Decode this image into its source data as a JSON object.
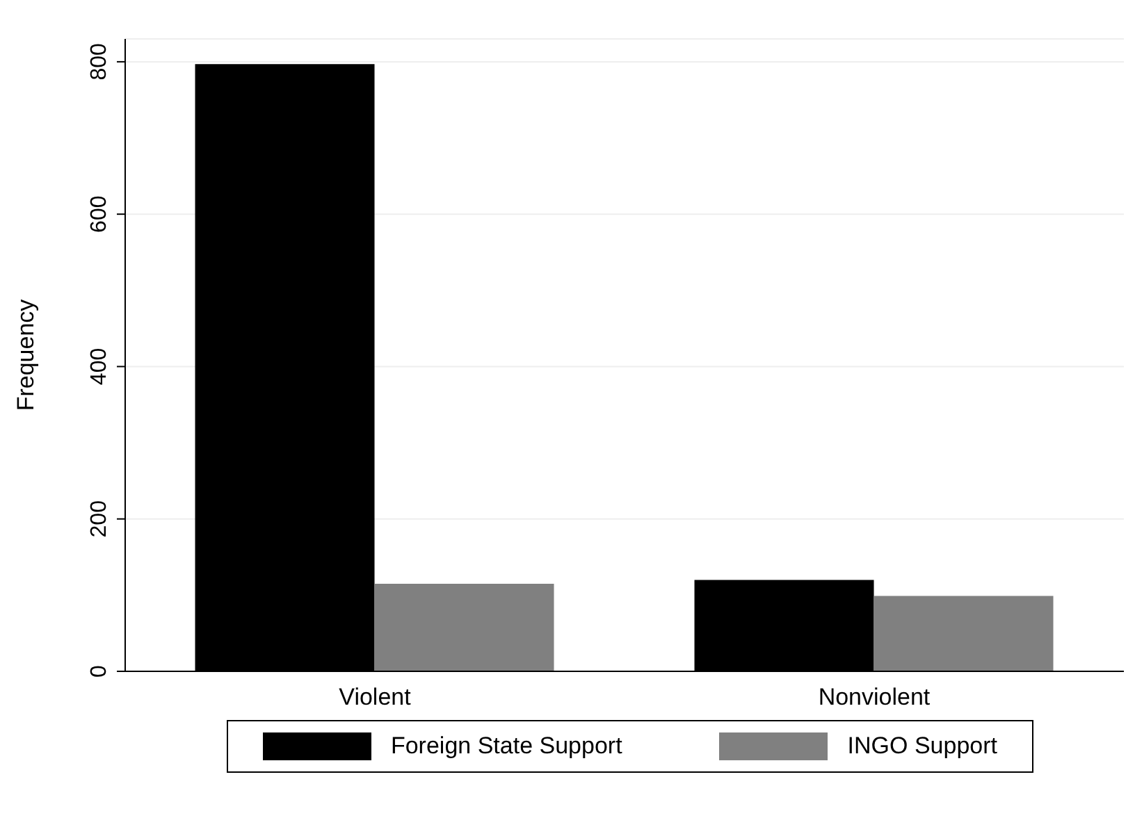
{
  "chart_data": {
    "type": "bar",
    "ylabel": "Frequency",
    "categories": [
      "Violent",
      "Nonviolent"
    ],
    "series": [
      {
        "name": "Foreign State Support",
        "color": "#000000",
        "values": [
          797,
          120
        ]
      },
      {
        "name": "INGO Support",
        "color": "#808080",
        "values": [
          115,
          99
        ]
      }
    ],
    "ylim": [
      0,
      830
    ],
    "yticks": [
      0,
      200,
      400,
      600,
      800
    ],
    "grid": "y",
    "legend": "bottom"
  }
}
